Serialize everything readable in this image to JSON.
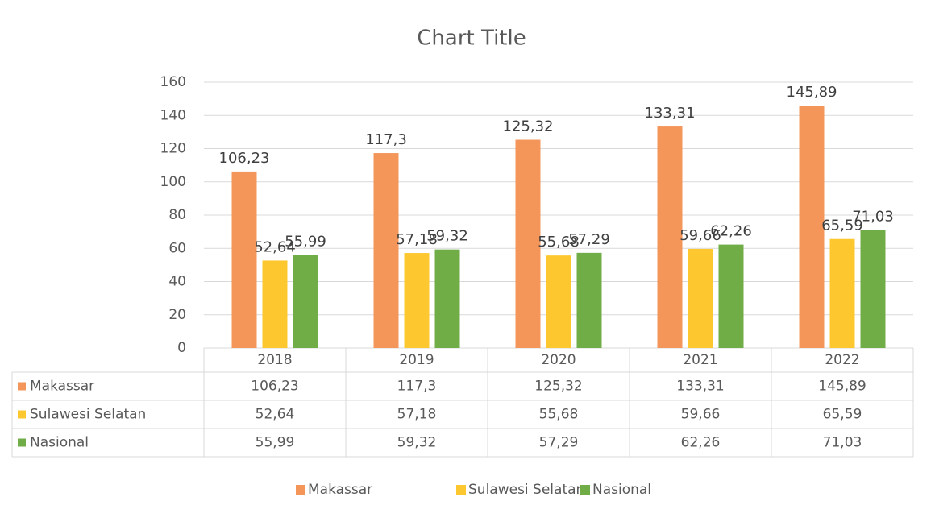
{
  "chart_data": {
    "type": "bar",
    "title": "Chart Title",
    "categories": [
      "2018",
      "2019",
      "2020",
      "2021",
      "2022"
    ],
    "series": [
      {
        "name": "Makassar",
        "color": "#f4955a",
        "values": [
          106.23,
          117.3,
          125.32,
          133.31,
          145.89
        ],
        "value_labels": [
          "106,23",
          "117,3",
          "125,32",
          "133,31",
          "145,89"
        ]
      },
      {
        "name": "Sulawesi Selatan",
        "color": "#fdc82f",
        "values": [
          52.64,
          57.18,
          55.68,
          59.66,
          65.59
        ],
        "value_labels": [
          "52,64",
          "57,18",
          "55,68",
          "59,66",
          "65,59"
        ]
      },
      {
        "name": "Nasional",
        "color": "#70ad47",
        "values": [
          55.99,
          59.32,
          57.29,
          62.26,
          71.03
        ],
        "value_labels": [
          "55,99",
          "59,32",
          "57,29",
          "62,26",
          "71,03"
        ]
      }
    ],
    "ylim": [
      0,
      160
    ],
    "yticks": [
      0,
      20,
      40,
      60,
      80,
      100,
      120,
      140,
      160
    ],
    "grid": true,
    "data_table": true,
    "legend": "bottom"
  }
}
